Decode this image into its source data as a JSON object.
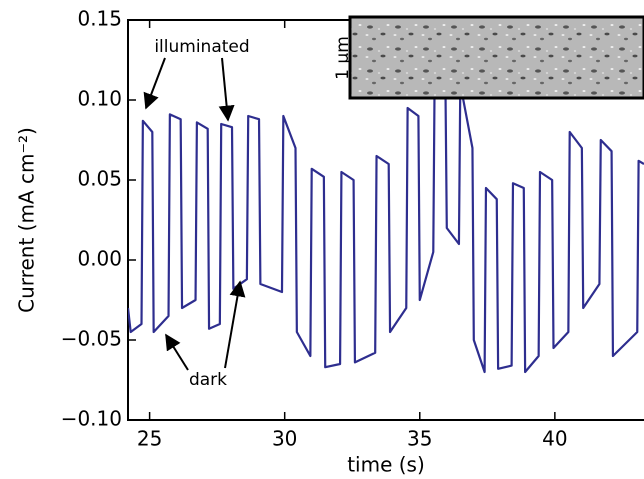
{
  "chart_data": {
    "type": "line",
    "xlabel": "time (s)",
    "ylabel": "Current (mA cm⁻²)",
    "color": "#2e2e8f",
    "xlim": [
      24.2,
      43.3
    ],
    "ylim": [
      -0.1,
      0.15
    ],
    "xticks": [
      25,
      30,
      35,
      40
    ],
    "yticks": [
      {
        "value": -0.1,
        "label": "−0.10"
      },
      {
        "value": -0.05,
        "label": "−0.05"
      },
      {
        "value": 0.0,
        "label": "0.00"
      },
      {
        "value": 0.05,
        "label": "0.05"
      },
      {
        "value": 0.1,
        "label": "0.10"
      },
      0.15
    ],
    "annotations": [
      "illuminated",
      "dark"
    ],
    "inset_scale_label": "1 μm",
    "x": [
      24.2,
      24.3,
      24.7,
      24.75,
      25.1,
      25.15,
      25.7,
      25.75,
      26.15,
      26.2,
      26.7,
      26.75,
      27.15,
      27.2,
      27.6,
      27.65,
      28.05,
      28.1,
      28.6,
      28.65,
      29.05,
      29.1,
      29.9,
      29.95,
      30.4,
      30.45,
      30.95,
      31.0,
      31.45,
      31.5,
      32.05,
      32.1,
      32.55,
      32.6,
      33.35,
      33.4,
      33.85,
      33.9,
      34.5,
      34.55,
      34.95,
      35.0,
      35.5,
      35.55,
      35.95,
      36.0,
      36.45,
      36.5,
      36.95,
      37.0,
      37.4,
      37.45,
      37.85,
      37.9,
      38.4,
      38.45,
      38.85,
      38.9,
      39.4,
      39.45,
      39.9,
      39.95,
      40.5,
      40.55,
      41.0,
      41.05,
      41.65,
      41.7,
      42.1,
      42.15,
      43.05,
      43.1,
      43.3
    ],
    "values": [
      -0.03,
      -0.045,
      -0.04,
      0.087,
      0.08,
      -0.045,
      -0.035,
      0.091,
      0.088,
      -0.03,
      -0.025,
      0.086,
      0.082,
      -0.043,
      -0.04,
      0.085,
      0.083,
      -0.018,
      -0.012,
      0.09,
      0.088,
      -0.015,
      -0.02,
      0.09,
      0.07,
      -0.045,
      -0.06,
      0.057,
      0.052,
      -0.067,
      -0.065,
      0.055,
      0.05,
      -0.064,
      -0.058,
      0.065,
      0.06,
      -0.045,
      -0.03,
      0.095,
      0.09,
      -0.025,
      0.005,
      0.115,
      0.11,
      0.02,
      0.01,
      0.11,
      0.07,
      -0.05,
      -0.07,
      0.045,
      0.038,
      -0.068,
      -0.066,
      0.048,
      0.045,
      -0.07,
      -0.06,
      0.055,
      0.05,
      -0.055,
      -0.045,
      0.08,
      0.07,
      -0.03,
      -0.015,
      0.075,
      0.068,
      -0.06,
      -0.045,
      0.062,
      0.06
    ]
  }
}
